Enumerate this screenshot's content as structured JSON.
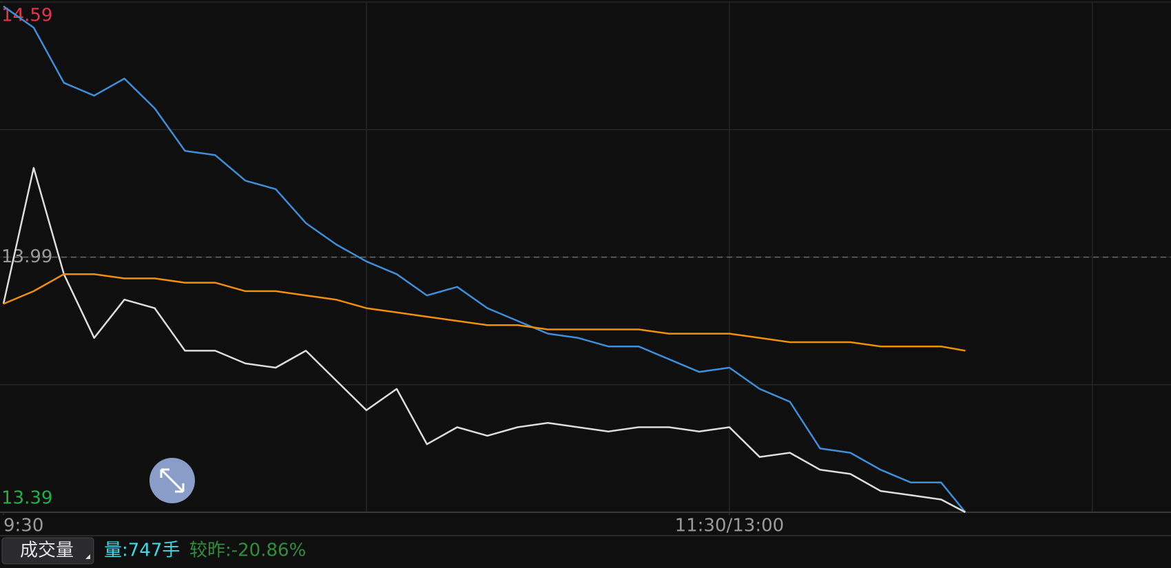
{
  "chart_data": {
    "type": "line",
    "x": [
      0,
      5,
      10,
      15,
      20,
      25,
      30,
      35,
      40,
      45,
      50,
      55,
      60,
      65,
      70,
      75,
      80,
      85,
      90,
      95,
      100,
      105,
      110,
      115,
      120,
      125,
      130,
      135,
      140,
      145,
      150,
      155,
      159
    ],
    "xlim": [
      0,
      193
    ],
    "xticks": [
      {
        "value": 0,
        "label": "9:30"
      },
      {
        "value": 120,
        "label": "11:30/13:00"
      }
    ],
    "ylim": [
      13.39,
      14.59
    ],
    "yticks": [
      14.59,
      13.99,
      13.39
    ],
    "ytick_colors": [
      "#e8334a",
      "#9a9a9a",
      "#22b04a"
    ],
    "series": [
      {
        "color": "#3d8fd9",
        "values": [
          14.58,
          14.53,
          14.4,
          14.37,
          14.41,
          14.34,
          14.24,
          14.23,
          14.17,
          14.15,
          14.07,
          14.02,
          13.98,
          13.95,
          13.9,
          13.92,
          13.87,
          13.84,
          13.81,
          13.8,
          13.78,
          13.78,
          13.75,
          13.72,
          13.73,
          13.68,
          13.65,
          13.54,
          13.53,
          13.49,
          13.46,
          13.46,
          13.39
        ]
      },
      {
        "color": "#dddddd",
        "values": [
          13.88,
          14.2,
          13.95,
          13.8,
          13.89,
          13.87,
          13.77,
          13.77,
          13.74,
          13.73,
          13.77,
          13.7,
          13.63,
          13.68,
          13.55,
          13.59,
          13.57,
          13.59,
          13.6,
          13.59,
          13.58,
          13.59,
          13.59,
          13.58,
          13.59,
          13.52,
          13.53,
          13.49,
          13.48,
          13.44,
          13.43,
          13.42,
          13.39
        ]
      },
      {
        "color": "#f0900a",
        "values": [
          13.88,
          13.91,
          13.95,
          13.95,
          13.94,
          13.94,
          13.93,
          13.93,
          13.91,
          13.91,
          13.9,
          13.89,
          13.87,
          13.86,
          13.85,
          13.84,
          13.83,
          13.83,
          13.82,
          13.82,
          13.82,
          13.82,
          13.81,
          13.81,
          13.81,
          13.8,
          13.79,
          13.79,
          13.79,
          13.78,
          13.78,
          13.78,
          13.77
        ]
      }
    ]
  },
  "toolbar": {
    "button": "成交量",
    "volume": "量:747手",
    "change": "较昨:-20.86%"
  }
}
